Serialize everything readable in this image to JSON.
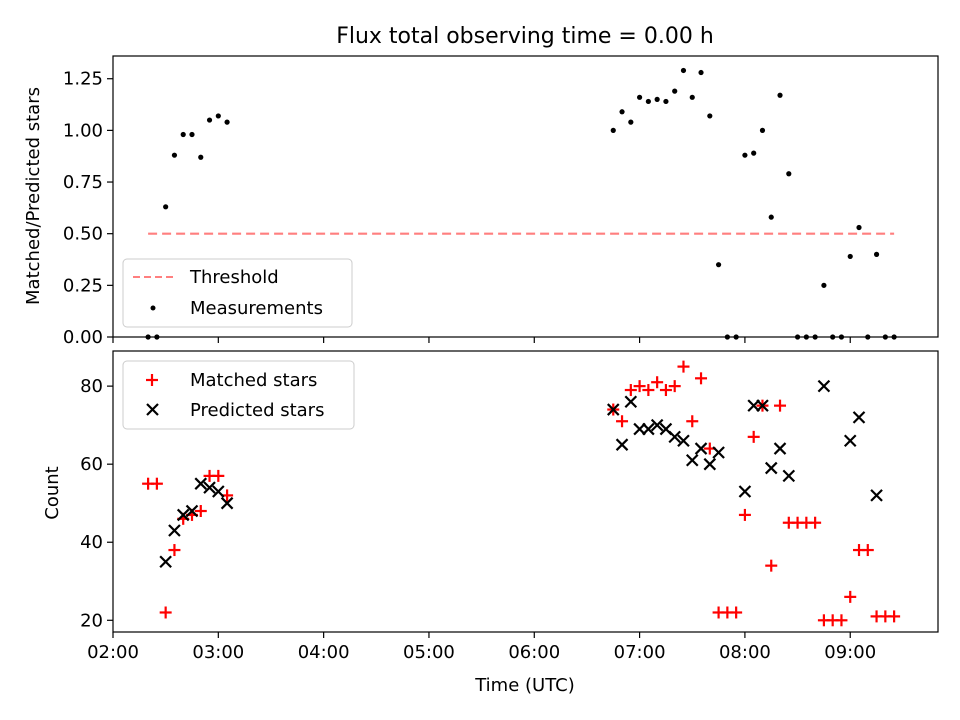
{
  "figure": {
    "title": "Flux total observing time = 0.00 h"
  },
  "chart_data": [
    {
      "type": "scatter",
      "xlabel": "",
      "ylabel": "Matched/Predicted stars",
      "xlim": [
        "02:00",
        "09:50"
      ],
      "ylim": [
        0,
        1.36
      ],
      "yticks": [
        0.0,
        0.25,
        0.5,
        0.75,
        1.0,
        1.25
      ],
      "ytick_labels": [
        "0.00",
        "0.25",
        "0.50",
        "0.75",
        "1.00",
        "1.25"
      ],
      "xticks": [
        "02:00",
        "03:00",
        "04:00",
        "05:00",
        "06:00",
        "07:00",
        "08:00",
        "09:00"
      ],
      "legend": {
        "placement": "lower-left",
        "entries": [
          "Threshold",
          "Measurements"
        ]
      },
      "series": [
        {
          "name": "Threshold",
          "kind": "line",
          "style": "dashed",
          "color": "#ff7f7f",
          "x": [
            "02:20",
            "09:25"
          ],
          "y": [
            0.5,
            0.5
          ]
        },
        {
          "name": "Measurements",
          "kind": "scatter",
          "marker": "dot",
          "color": "#000000",
          "points": [
            [
              "02:20",
              0.0
            ],
            [
              "02:25",
              0.0
            ],
            [
              "02:30",
              0.63
            ],
            [
              "02:35",
              0.88
            ],
            [
              "02:40",
              0.98
            ],
            [
              "02:45",
              0.98
            ],
            [
              "02:50",
              0.87
            ],
            [
              "02:55",
              1.05
            ],
            [
              "03:00",
              1.07
            ],
            [
              "03:05",
              1.04
            ],
            [
              "06:45",
              1.0
            ],
            [
              "06:50",
              1.09
            ],
            [
              "06:55",
              1.04
            ],
            [
              "07:00",
              1.16
            ],
            [
              "07:05",
              1.14
            ],
            [
              "07:10",
              1.15
            ],
            [
              "07:15",
              1.14
            ],
            [
              "07:20",
              1.19
            ],
            [
              "07:25",
              1.29
            ],
            [
              "07:30",
              1.16
            ],
            [
              "07:35",
              1.28
            ],
            [
              "07:40",
              1.07
            ],
            [
              "07:45",
              0.35
            ],
            [
              "07:50",
              0.0
            ],
            [
              "07:55",
              0.0
            ],
            [
              "08:00",
              0.88
            ],
            [
              "08:05",
              0.89
            ],
            [
              "08:10",
              1.0
            ],
            [
              "08:15",
              0.58
            ],
            [
              "08:20",
              1.17
            ],
            [
              "08:25",
              0.79
            ],
            [
              "08:30",
              0.0
            ],
            [
              "08:35",
              0.0
            ],
            [
              "08:40",
              0.0
            ],
            [
              "08:45",
              0.25
            ],
            [
              "08:50",
              0.0
            ],
            [
              "08:55",
              0.0
            ],
            [
              "09:00",
              0.39
            ],
            [
              "09:05",
              0.53
            ],
            [
              "09:10",
              0.0
            ],
            [
              "09:15",
              0.4
            ],
            [
              "09:20",
              0.0
            ],
            [
              "09:25",
              0.0
            ]
          ]
        }
      ]
    },
    {
      "type": "scatter",
      "xlabel": "Time (UTC)",
      "ylabel": "Count",
      "xlim": [
        "02:00",
        "09:50"
      ],
      "ylim": [
        17,
        89
      ],
      "yticks": [
        20,
        40,
        60,
        80
      ],
      "ytick_labels": [
        "20",
        "40",
        "60",
        "80"
      ],
      "xticks": [
        "02:00",
        "03:00",
        "04:00",
        "05:00",
        "06:00",
        "07:00",
        "08:00",
        "09:00"
      ],
      "xtick_labels": [
        "02:00",
        "03:00",
        "04:00",
        "05:00",
        "06:00",
        "07:00",
        "08:00",
        "09:00"
      ],
      "legend": {
        "placement": "upper-left",
        "entries": [
          "Matched stars",
          "Predicted stars"
        ]
      },
      "series": [
        {
          "name": "Matched stars",
          "marker": "plus",
          "color": "#ff0000",
          "points": [
            [
              "02:20",
              55
            ],
            [
              "02:25",
              55
            ],
            [
              "02:30",
              22
            ],
            [
              "02:35",
              38
            ],
            [
              "02:40",
              46
            ],
            [
              "02:45",
              47
            ],
            [
              "02:50",
              48
            ],
            [
              "02:55",
              57
            ],
            [
              "03:00",
              57
            ],
            [
              "03:05",
              52
            ],
            [
              "06:45",
              74
            ],
            [
              "06:50",
              71
            ],
            [
              "06:55",
              79
            ],
            [
              "07:00",
              80
            ],
            [
              "07:05",
              79
            ],
            [
              "07:10",
              81
            ],
            [
              "07:15",
              79
            ],
            [
              "07:20",
              80
            ],
            [
              "07:25",
              85
            ],
            [
              "07:30",
              71
            ],
            [
              "07:35",
              82
            ],
            [
              "07:40",
              64
            ],
            [
              "07:45",
              22
            ],
            [
              "07:50",
              22
            ],
            [
              "07:55",
              22
            ],
            [
              "08:00",
              47
            ],
            [
              "08:05",
              67
            ],
            [
              "08:10",
              75
            ],
            [
              "08:15",
              34
            ],
            [
              "08:20",
              75
            ],
            [
              "08:25",
              45
            ],
            [
              "08:30",
              45
            ],
            [
              "08:35",
              45
            ],
            [
              "08:40",
              45
            ],
            [
              "08:45",
              20
            ],
            [
              "08:50",
              20
            ],
            [
              "08:55",
              20
            ],
            [
              "09:00",
              26
            ],
            [
              "09:05",
              38
            ],
            [
              "09:10",
              38
            ],
            [
              "09:15",
              21
            ],
            [
              "09:20",
              21
            ],
            [
              "09:25",
              21
            ]
          ]
        },
        {
          "name": "Predicted stars",
          "marker": "x",
          "color": "#000000",
          "points": [
            [
              "02:30",
              35
            ],
            [
              "02:35",
              43
            ],
            [
              "02:40",
              47
            ],
            [
              "02:45",
              48
            ],
            [
              "02:50",
              55
            ],
            [
              "02:55",
              54
            ],
            [
              "03:00",
              53
            ],
            [
              "03:05",
              50
            ],
            [
              "06:45",
              74
            ],
            [
              "06:50",
              65
            ],
            [
              "06:55",
              76
            ],
            [
              "07:00",
              69
            ],
            [
              "07:05",
              69
            ],
            [
              "07:10",
              70
            ],
            [
              "07:15",
              69
            ],
            [
              "07:20",
              67
            ],
            [
              "07:25",
              66
            ],
            [
              "07:30",
              61
            ],
            [
              "07:35",
              64
            ],
            [
              "07:40",
              60
            ],
            [
              "07:45",
              63
            ],
            [
              "08:00",
              53
            ],
            [
              "08:05",
              75
            ],
            [
              "08:10",
              75
            ],
            [
              "08:15",
              59
            ],
            [
              "08:20",
              64
            ],
            [
              "08:25",
              57
            ],
            [
              "08:45",
              80
            ],
            [
              "09:00",
              66
            ],
            [
              "09:05",
              72
            ],
            [
              "09:15",
              52
            ]
          ]
        }
      ]
    }
  ]
}
